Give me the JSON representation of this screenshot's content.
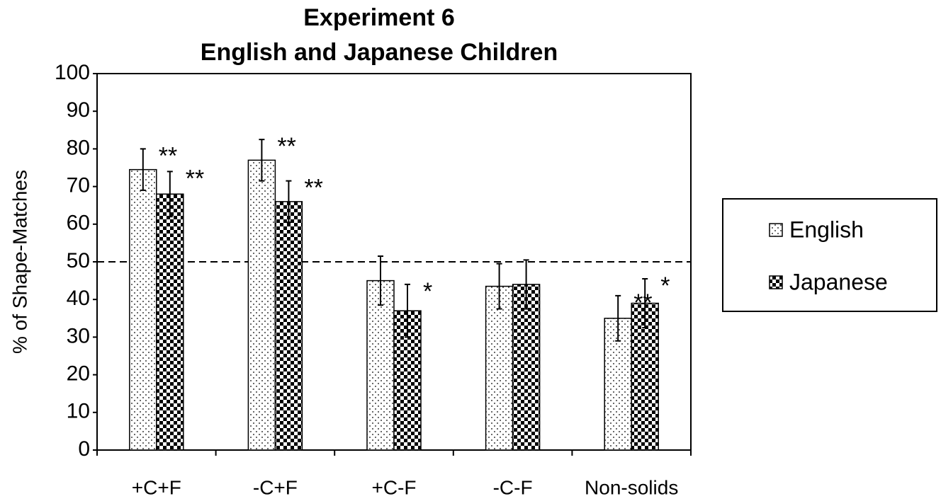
{
  "chart_data": {
    "type": "bar",
    "title": [
      "Experiment 6",
      "English and Japanese Children"
    ],
    "y_label": "% of Shape-Matches",
    "categories": [
      "+C+F",
      "-C+F",
      "+C-F",
      "-C-F",
      "Non-solids"
    ],
    "series": [
      {
        "name": "English",
        "color": "#000000",
        "pattern": "dots",
        "values": [
          74.5,
          77,
          45,
          43.5,
          35
        ],
        "errors": [
          5.5,
          5.5,
          6.5,
          6,
          6
        ],
        "significance": [
          "**",
          "**",
          null,
          null,
          "**"
        ]
      },
      {
        "name": "Japanese",
        "color": "#000000",
        "pattern": "checker",
        "values": [
          68,
          66,
          37,
          44,
          39
        ],
        "errors": [
          6,
          5.5,
          7,
          6.5,
          6.5
        ],
        "significance": [
          "**",
          "**",
          "*",
          null,
          "*"
        ]
      }
    ],
    "reference_line": 50,
    "ylim": [
      0,
      100
    ],
    "yticks": [
      0,
      10,
      20,
      30,
      40,
      50,
      60,
      70,
      80,
      90,
      100
    ],
    "legend": "right"
  }
}
